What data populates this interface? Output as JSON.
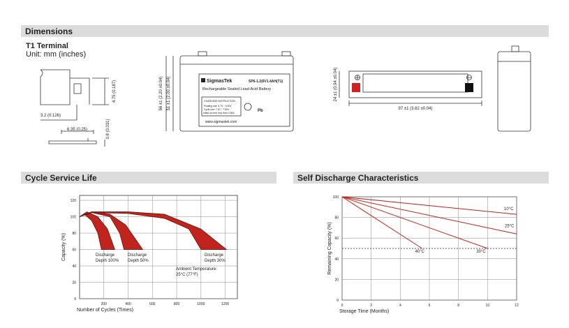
{
  "sections": {
    "dimensions": "Dimensions",
    "cycle": "Cycle Service Life",
    "self_discharge": "Self Discharge Characteristics"
  },
  "terminal": {
    "title": "T1 Terminal",
    "unit": "Unit: mm (inches)",
    "dims": [
      "4.75 (0.187)",
      "3.2 (0.126)",
      "6.35 (0.25)",
      "0.8 (0.031)"
    ]
  },
  "battery": {
    "height_total": "56 ±1 (2.20 ±0.04)",
    "height_case": "51 ±1 (2.00 ±0.04)",
    "brand": "SigmasTek",
    "model": "SP6-1.2(6V1.4AH(T1)",
    "description": "Rechargeable Sealed Lead-Acid Battery",
    "charging": [
      "CHARGING INSTRUCTION",
      "Floating use: 6.75 ~ 6.90V",
      "Cycle use: 7.20 ~ 7.50V",
      "Initial current: less than 0.36A"
    ],
    "website": "www.sigmastek.com",
    "icons": [
      "Pb"
    ],
    "width": "24 ±1 (0.94 ±0.04)",
    "length": "97 ±1 (3.82 ±0.04)"
  },
  "cycle_chart": {
    "type": "area",
    "ylabel": "Capacity (%)",
    "xlabel": "Number of Cycles (Times)",
    "xlim": [
      0,
      1300
    ],
    "ylim": [
      0,
      126
    ],
    "xticks": [
      200,
      400,
      600,
      800,
      1000,
      1200
    ],
    "yticks": [
      0,
      20,
      40,
      60,
      80,
      100,
      120
    ],
    "color": "#c0241c",
    "series": [
      {
        "x": [
          0,
          60,
          150,
          230,
          290,
          180,
          150,
          100,
          40
        ],
        "values": [
          100,
          106,
          100,
          85,
          60,
          60,
          80,
          95,
          103
        ]
      },
      {
        "x": [
          0,
          100,
          250,
          380,
          450,
          520,
          366,
          330,
          250,
          100
        ],
        "values": [
          100,
          106,
          103,
          90,
          75,
          60,
          60,
          80,
          100,
          105
        ]
      },
      {
        "x": [
          0,
          100,
          400,
          700,
          1000,
          1210,
          1000,
          900,
          700,
          400,
          100
        ],
        "values": [
          100,
          106,
          106,
          103,
          85,
          60,
          60,
          85,
          98,
          104,
          105
        ]
      }
    ],
    "annotations": [
      [
        "Discharge",
        "Depth 100%"
      ],
      [
        "Discharge",
        "Depth 50%"
      ],
      [
        "Discharge",
        "Depth 30%"
      ],
      [
        "Ambient Temperature:",
        "25°C (77°F)"
      ]
    ]
  },
  "discharge_chart": {
    "type": "line",
    "ylabel": "Remaining Capacity (%)",
    "xlabel": "Storage Time (Months)",
    "xlim": [
      0,
      12
    ],
    "ylim": [
      0,
      100
    ],
    "xticks": [
      0,
      2,
      4,
      6,
      8,
      10,
      12
    ],
    "yticks": [
      0,
      20,
      40,
      60,
      80,
      100
    ],
    "reference_line": 50,
    "color": "#c0241c",
    "series": [
      {
        "name": "10°C",
        "x": [
          0,
          12
        ],
        "values": [
          100,
          83
        ]
      },
      {
        "name": "25°C",
        "x": [
          0,
          12
        ],
        "values": [
          100,
          64
        ]
      },
      {
        "name": "30°C",
        "x": [
          0,
          10
        ],
        "values": [
          100,
          50
        ]
      },
      {
        "name": "40°C",
        "x": [
          0,
          5.5
        ],
        "values": [
          100,
          50
        ]
      }
    ]
  }
}
